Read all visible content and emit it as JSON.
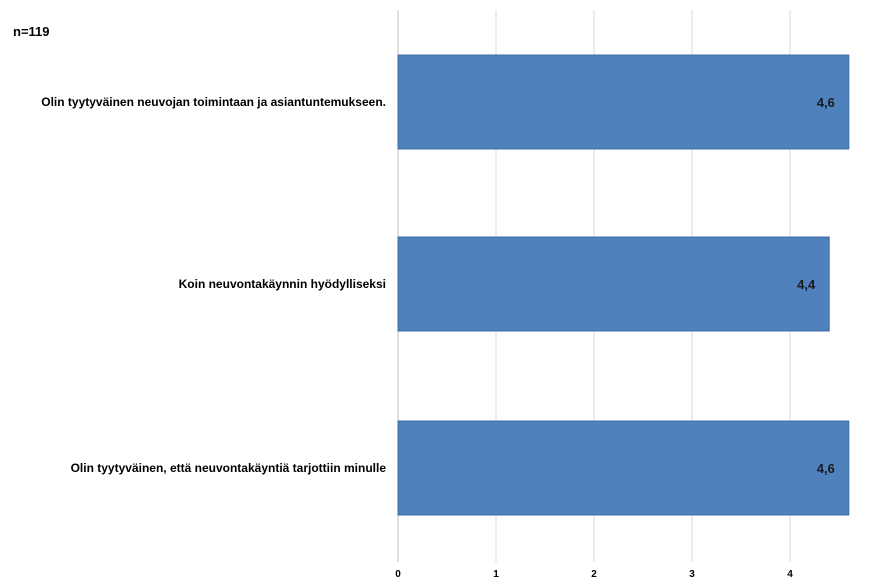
{
  "chart_data": {
    "type": "bar",
    "orientation": "horizontal",
    "note": "n=119",
    "categories": [
      "Olin tyytyväinen neuvojan toimintaan ja asiantuntemukseen.",
      "Koin neuvontakäynnin hyödylliseksi",
      "Olin tyytyväinen, että neuvontakäyntiä tarjottiin minulle"
    ],
    "values": [
      4.6,
      4.4,
      4.6
    ],
    "value_labels": [
      "4,6",
      "4,4",
      "4,6"
    ],
    "xlim": [
      0,
      5
    ],
    "xticks": [
      0,
      1,
      2,
      3,
      4
    ],
    "xtick_labels": [
      "0",
      "1",
      "2",
      "3",
      "4"
    ],
    "grid": true,
    "legend": "none",
    "bar_color": "#4f81bd",
    "grid_color": "#d9d9d9"
  }
}
